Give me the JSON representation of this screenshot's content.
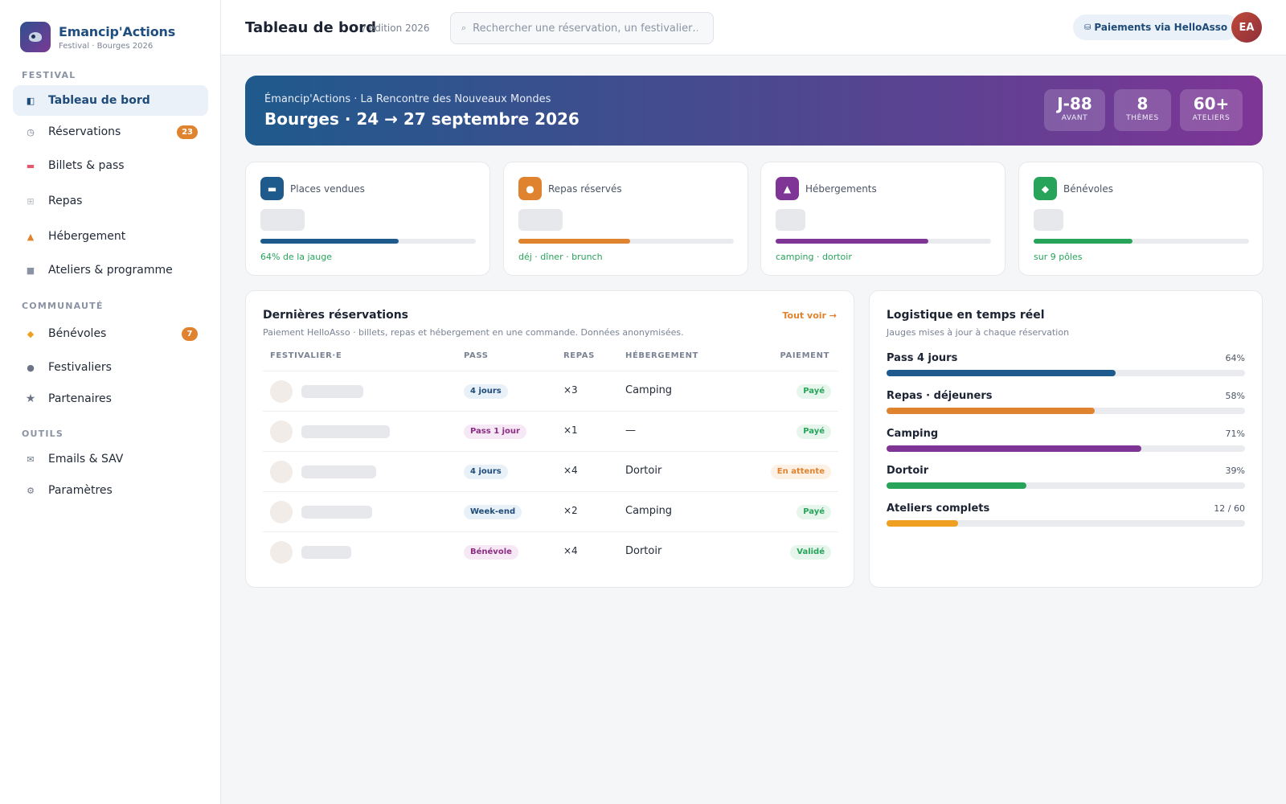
{
  "brand": {
    "name": "Emancip'Actions",
    "subtitle": "Festival · Bourges 2026"
  },
  "colors": {
    "primary": "#1f5a8c",
    "accent": "#e0832f",
    "purple": "#7e3596",
    "green": "#27a35a",
    "amber": "#f0a020"
  },
  "sidebar": {
    "sections": [
      {
        "title": "FESTIVAL",
        "items": [
          {
            "label": "Tableau de bord",
            "icon": "dashboard-icon",
            "active": true
          },
          {
            "label": "Réservations",
            "icon": "clock-icon",
            "badge": "23"
          },
          {
            "label": "Billets & pass",
            "icon": "ticket-icon"
          },
          {
            "label": "Repas",
            "icon": "plate-icon"
          },
          {
            "label": "Hébergement",
            "icon": "tent-icon"
          },
          {
            "label": "Ateliers & programme",
            "icon": "calendar-icon"
          }
        ]
      },
      {
        "title": "COMMUNAUTÉ",
        "items": [
          {
            "label": "Bénévoles",
            "icon": "handshake-icon",
            "badge": "7"
          },
          {
            "label": "Festivaliers",
            "icon": "people-icon"
          },
          {
            "label": "Partenaires",
            "icon": "star-icon"
          }
        ]
      },
      {
        "title": "OUTILS",
        "items": [
          {
            "label": "Emails & SAV",
            "icon": "mail-icon"
          },
          {
            "label": "Paramètres",
            "icon": "gear-icon"
          }
        ]
      }
    ]
  },
  "topbar": {
    "title": "Tableau de bord",
    "edition": "/ édition 2026",
    "search_placeholder": "Rechercher une réservation, un festivalier…",
    "payments_label": "Paiements via HelloAsso",
    "avatar_initials": "EA"
  },
  "hero": {
    "subtitle": "Émancip'Actions · La Rencontre des Nouveaux Mondes",
    "title": "Bourges · 24 → 27 septembre 2026",
    "stats": [
      {
        "value": "J-88",
        "label": "AVANT"
      },
      {
        "value": "8",
        "label": "THÈMES"
      },
      {
        "value": "60+",
        "label": "ATELIERS"
      }
    ]
  },
  "kpis": [
    {
      "label": "Places vendues",
      "icon": "ticket-icon",
      "icon_bg": "#1f5a8c",
      "progress": 0.64,
      "color": "#1f5a8c",
      "note": "64% de la jauge"
    },
    {
      "label": "Repas réservés",
      "icon": "plate-icon",
      "icon_bg": "#e0832f",
      "progress": 0.52,
      "color": "#e0832f",
      "note": "déj · dîner · brunch"
    },
    {
      "label": "Hébergements",
      "icon": "tent-icon",
      "icon_bg": "#7e3596",
      "progress": 0.71,
      "color": "#7e3596",
      "note": "camping · dortoir"
    },
    {
      "label": "Bénévoles",
      "icon": "handshake-icon",
      "icon_bg": "#27a35a",
      "progress": 0.46,
      "color": "#27a35a",
      "note": "sur 9 pôles"
    }
  ],
  "reservations": {
    "title": "Dernières réservations",
    "subtitle": "Paiement HelloAsso · billets, repas et hébergement en une commande. Données anonymisées.",
    "see_all": "Tout voir →",
    "columns": [
      "FESTIVALIER·E",
      "PASS",
      "REPAS",
      "HÉBERGEMENT",
      "PAIEMENT"
    ],
    "rows": [
      {
        "pass": "4 jours",
        "pass_style": "blue",
        "meals": "×3",
        "lodging": "Camping",
        "payment": "Payé",
        "payment_style": "green"
      },
      {
        "pass": "Pass 1 jour",
        "pass_style": "pink",
        "meals": "×1",
        "lodging": "—",
        "payment": "Payé",
        "payment_style": "green"
      },
      {
        "pass": "4 jours",
        "pass_style": "blue",
        "meals": "×4",
        "lodging": "Dortoir",
        "payment": "En attente",
        "payment_style": "orange"
      },
      {
        "pass": "Week-end",
        "pass_style": "blue",
        "meals": "×2",
        "lodging": "Camping",
        "payment": "Payé",
        "payment_style": "green"
      },
      {
        "pass": "Bénévole",
        "pass_style": "pink",
        "meals": "×4",
        "lodging": "Dortoir",
        "payment": "Validé",
        "payment_style": "green"
      }
    ]
  },
  "logistics": {
    "title": "Logistique en temps réel",
    "subtitle": "Jauges mises à jour à chaque réservation",
    "items": [
      {
        "label": "Pass 4 jours",
        "value": "64%",
        "progress": 0.64,
        "color": "#1f5a8c"
      },
      {
        "label": "Repas · déjeuners",
        "value": "58%",
        "progress": 0.58,
        "color": "#e0832f"
      },
      {
        "label": "Camping",
        "value": "71%",
        "progress": 0.71,
        "color": "#7e3596"
      },
      {
        "label": "Dortoir",
        "value": "39%",
        "progress": 0.39,
        "color": "#27a35a"
      },
      {
        "label": "Ateliers complets",
        "value": "12 / 60",
        "progress": 0.2,
        "color": "#f0a020"
      }
    ]
  }
}
